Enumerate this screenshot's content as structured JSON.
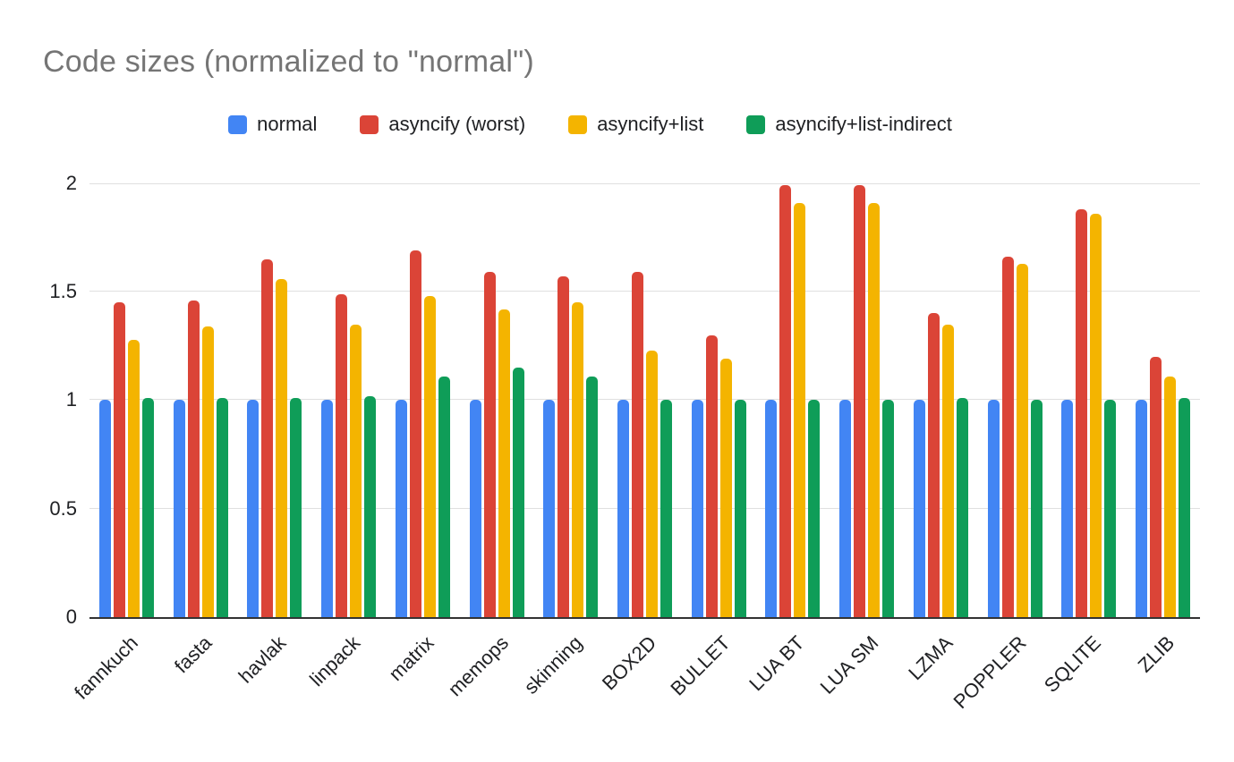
{
  "chart_data": {
    "type": "bar",
    "title": "Code sizes (normalized to \"normal\")",
    "xlabel": "",
    "ylabel": "",
    "ylim": [
      0,
      2
    ],
    "yticks": [
      0,
      0.5,
      1,
      1.5,
      2
    ],
    "grid": true,
    "legend_position": "top",
    "categories": [
      "fannkuch",
      "fasta",
      "havlak",
      "linpack",
      "matrix",
      "memops",
      "skinning",
      "BOX2D",
      "BULLET",
      "LUA BT",
      "LUA SM",
      "LZMA",
      "POPPLER",
      "SQLITE",
      "ZLIB"
    ],
    "series": [
      {
        "name": "normal",
        "color": "#4285F4",
        "values": [
          1.0,
          1.0,
          1.0,
          1.0,
          1.0,
          1.0,
          1.0,
          1.0,
          1.0,
          1.0,
          1.0,
          1.0,
          1.0,
          1.0,
          1.0
        ]
      },
      {
        "name": "asyncify (worst)",
        "color": "#DB4437",
        "values": [
          1.45,
          1.46,
          1.65,
          1.49,
          1.69,
          1.59,
          1.57,
          1.59,
          1.3,
          1.99,
          1.99,
          1.4,
          1.66,
          1.88,
          1.2
        ]
      },
      {
        "name": "asyncify+list",
        "color": "#F4B400",
        "values": [
          1.28,
          1.34,
          1.56,
          1.35,
          1.48,
          1.42,
          1.45,
          1.23,
          1.19,
          1.91,
          1.91,
          1.35,
          1.63,
          1.86,
          1.11
        ]
      },
      {
        "name": "asyncify+list-indirect",
        "color": "#0F9D58",
        "values": [
          1.01,
          1.01,
          1.01,
          1.02,
          1.11,
          1.15,
          1.11,
          1.0,
          1.0,
          1.0,
          1.0,
          1.01,
          1.0,
          1.0,
          1.01
        ]
      }
    ]
  }
}
